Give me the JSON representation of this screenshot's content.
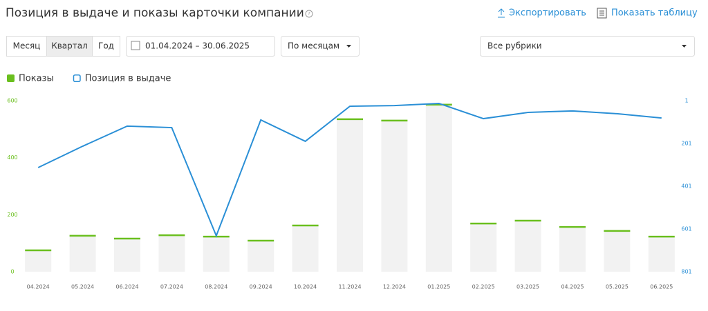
{
  "header": {
    "title": "Позиция в выдаче и показы карточки компании",
    "export": "Экспортировать",
    "show_table": "Показать таблицу"
  },
  "controls": {
    "periods": [
      "Месяц",
      "Квартал",
      "Год"
    ],
    "date_range": "01.04.2024 – 30.06.2025",
    "grouping": "По месяцам",
    "rubric": "Все рубрики"
  },
  "chart_data": {
    "type": "combo",
    "categories": [
      "04.2024",
      "05.2024",
      "06.2024",
      "07.2024",
      "08.2024",
      "09.2024",
      "10.2024",
      "11.2024",
      "12.2024",
      "01.2025",
      "02.2025",
      "03.2025",
      "04.2025",
      "05.2025",
      "06.2025"
    ],
    "series": [
      {
        "name": "Показы",
        "type": "bar",
        "color": "#6abf1e",
        "values": [
          75,
          126,
          116,
          128,
          123,
          109,
          162,
          535,
          530,
          586,
          169,
          179,
          157,
          143,
          123
        ]
      },
      {
        "name": "Позиция в выдаче",
        "type": "line",
        "axis": "y2",
        "color": "#2a8fd6",
        "values": [
          314,
          214,
          120,
          127,
          633,
          91,
          191,
          27,
          24,
          14,
          85,
          56,
          49,
          62,
          82
        ]
      }
    ],
    "ylim": [
      0,
      600
    ],
    "yticks": [
      0,
      200,
      400,
      600
    ],
    "y2lim": [
      801,
      1
    ],
    "y2ticks": [
      1,
      201,
      401,
      601,
      801
    ],
    "legend": "top-left",
    "grid": false
  }
}
